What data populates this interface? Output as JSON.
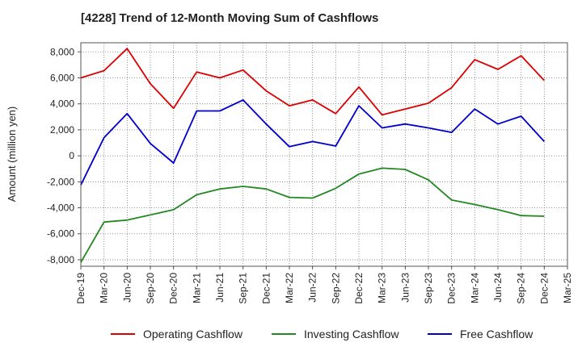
{
  "chart_data": {
    "type": "line",
    "title": "[4228]  Trend of 12-Month Moving Sum of Cashflows",
    "ylabel": "Amount (million yen)",
    "xlabel": "",
    "ylim": [
      -8500,
      8700
    ],
    "yticks": [
      8000,
      6000,
      4000,
      2000,
      0,
      -2000,
      -4000,
      -6000,
      -8000
    ],
    "ytick_labels": [
      "8,000",
      "6,000",
      "4,000",
      "2,000",
      "0",
      "-2,000",
      "-4,000",
      "-6,000",
      "-8,000"
    ],
    "categories": [
      "Dec-19",
      "Mar-20",
      "Jun-20",
      "Sep-20",
      "Dec-20",
      "Mar-21",
      "Jun-21",
      "Sep-21",
      "Dec-21",
      "Mar-22",
      "Jun-22",
      "Sep-22",
      "Dec-22",
      "Mar-23",
      "Jun-23",
      "Sep-23",
      "Dec-23",
      "Mar-24",
      "Jun-24",
      "Sep-24",
      "Dec-24",
      "Mar-25"
    ],
    "grid": true,
    "legend_position": "bottom",
    "series": [
      {
        "name": "Operating Cashflow",
        "color": "#dd0000",
        "values": [
          6000,
          6550,
          8250,
          5550,
          3650,
          6450,
          6000,
          6600,
          5000,
          3850,
          4300,
          3250,
          5300,
          3150,
          3600,
          4050,
          5250,
          7400,
          6650,
          7700,
          5800,
          null
        ]
      },
      {
        "name": "Investing Cashflow",
        "color": "#228822",
        "values": [
          -8200,
          -5100,
          -4950,
          -4550,
          -4150,
          -3000,
          -2550,
          -2350,
          -2550,
          -3200,
          -3250,
          -2500,
          -1400,
          -950,
          -1050,
          -1850,
          -3400,
          -3750,
          -4150,
          -4600,
          -4650,
          null
        ]
      },
      {
        "name": "Free Cashflow",
        "color": "#0000cc",
        "values": [
          -2250,
          1400,
          3250,
          950,
          -550,
          3450,
          3450,
          4300,
          2450,
          700,
          1100,
          750,
          3850,
          2150,
          2450,
          2150,
          1800,
          3600,
          2450,
          3050,
          1100,
          null
        ]
      }
    ]
  }
}
